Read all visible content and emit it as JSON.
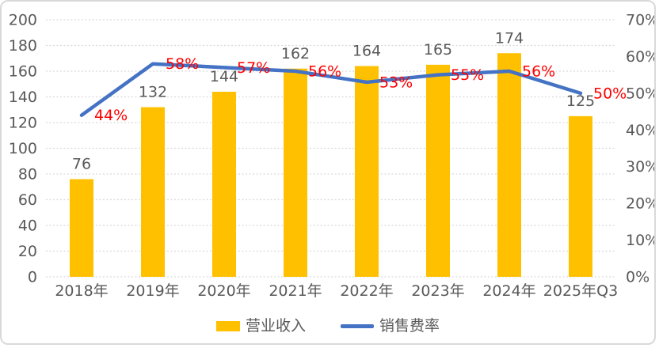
{
  "chart_data": {
    "type": "combo",
    "title": "",
    "categories": [
      "2018年",
      "2019年",
      "2020年",
      "2021年",
      "2022年",
      "2023年",
      "2024年",
      "2025年Q3"
    ],
    "series": [
      {
        "name": "营业收入",
        "type": "bar",
        "axis": "left",
        "values": [
          76,
          132,
          144,
          162,
          164,
          165,
          174,
          125
        ],
        "labels": [
          "76",
          "132",
          "144",
          "162",
          "164",
          "165",
          "174",
          "125"
        ],
        "color": "#FFC000",
        "label_color": "#595959"
      },
      {
        "name": "销售费率",
        "type": "line",
        "axis": "right",
        "values": [
          44,
          58,
          57,
          56,
          53,
          55,
          56,
          50
        ],
        "labels": [
          "44%",
          "58%",
          "57%",
          "56%",
          "53%",
          "55%",
          "56%",
          "50%"
        ],
        "color": "#4472C4",
        "label_color": "#FF0000"
      }
    ],
    "left_axis": {
      "min": 0,
      "max": 200,
      "step": 20,
      "ticks": [
        "200",
        "180",
        "160",
        "140",
        "120",
        "100",
        "80",
        "60",
        "40",
        "20",
        "0"
      ]
    },
    "right_axis": {
      "min": 0,
      "max": 70,
      "step": 10,
      "ticks": [
        "70%",
        "60%",
        "50%",
        "40%",
        "30%",
        "20%",
        "10%",
        "0%"
      ]
    },
    "grid": true,
    "legend_position": "bottom",
    "colors": {
      "axis_text": "#595959",
      "gridline": "#d9d9d9",
      "background": "#ffffff",
      "border": "#d9d9d9"
    }
  }
}
